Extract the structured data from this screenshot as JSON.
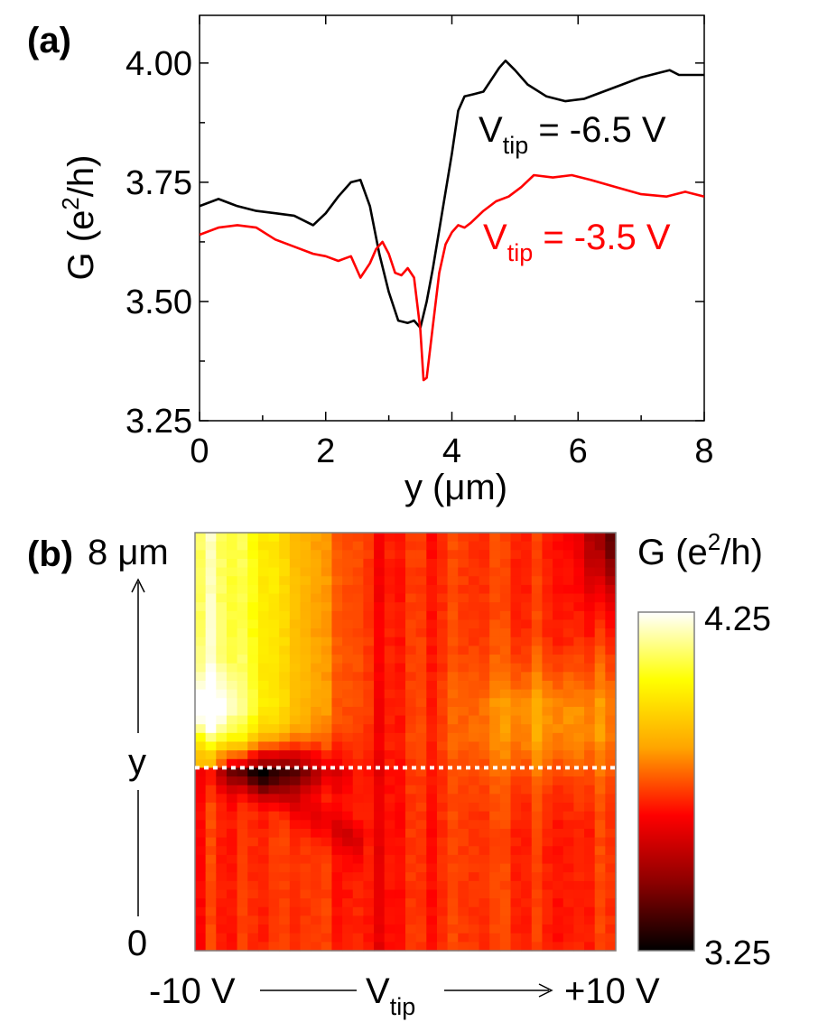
{
  "chart_data": [
    {
      "panel_label": "(a)",
      "type": "line",
      "xlabel": "y (μm)",
      "ylabel": {
        "main": "G (e",
        "sup": "2",
        "tail": "/h)"
      },
      "xlim": [
        0,
        8
      ],
      "ylim": [
        3.25,
        4.1
      ],
      "xticks": [
        "0",
        "2",
        "4",
        "6",
        "8"
      ],
      "yticks": [
        "3.25",
        "3.50",
        "3.75",
        "4.00"
      ],
      "grid": false,
      "series": [
        {
          "name": {
            "main": "V",
            "sub": "tip",
            "tail": " = -6.5 V"
          },
          "color": "#000000",
          "x": [
            0,
            0.3,
            0.6,
            0.9,
            1.2,
            1.5,
            1.8,
            2.0,
            2.2,
            2.4,
            2.55,
            2.7,
            2.85,
            3.0,
            3.15,
            3.3,
            3.4,
            3.5,
            3.6,
            3.7,
            3.8,
            3.9,
            4.0,
            4.1,
            4.2,
            4.35,
            4.5,
            4.6,
            4.75,
            4.85,
            5.0,
            5.2,
            5.5,
            5.8,
            6.1,
            6.4,
            6.7,
            7.0,
            7.3,
            7.45,
            7.6,
            7.8,
            8.0
          ],
          "y": [
            3.7,
            3.715,
            3.7,
            3.69,
            3.685,
            3.68,
            3.66,
            3.685,
            3.72,
            3.75,
            3.755,
            3.7,
            3.6,
            3.52,
            3.46,
            3.455,
            3.46,
            3.445,
            3.5,
            3.57,
            3.65,
            3.73,
            3.81,
            3.9,
            3.93,
            3.935,
            3.94,
            3.96,
            3.99,
            4.005,
            3.985,
            3.955,
            3.93,
            3.92,
            3.925,
            3.94,
            3.955,
            3.97,
            3.98,
            3.985,
            3.975,
            3.975,
            3.975
          ]
        },
        {
          "name": {
            "main": "V",
            "sub": "tip",
            "tail": " = -3.5 V"
          },
          "color": "#ff0000",
          "x": [
            0,
            0.3,
            0.6,
            0.9,
            1.2,
            1.5,
            1.8,
            2.0,
            2.2,
            2.4,
            2.55,
            2.7,
            2.8,
            2.9,
            3.0,
            3.1,
            3.2,
            3.3,
            3.4,
            3.5,
            3.55,
            3.6,
            3.7,
            3.8,
            3.9,
            4.0,
            4.1,
            4.2,
            4.3,
            4.5,
            4.7,
            4.9,
            5.1,
            5.3,
            5.6,
            5.9,
            6.2,
            6.6,
            7.0,
            7.4,
            7.7,
            8.0
          ],
          "y": [
            3.64,
            3.655,
            3.66,
            3.655,
            3.63,
            3.615,
            3.6,
            3.595,
            3.585,
            3.595,
            3.55,
            3.58,
            3.61,
            3.625,
            3.6,
            3.56,
            3.555,
            3.57,
            3.55,
            3.44,
            3.335,
            3.34,
            3.45,
            3.56,
            3.62,
            3.645,
            3.66,
            3.655,
            3.665,
            3.69,
            3.71,
            3.72,
            3.74,
            3.765,
            3.76,
            3.765,
            3.755,
            3.74,
            3.725,
            3.72,
            3.73,
            3.72
          ]
        }
      ]
    },
    {
      "panel_label": "(b)",
      "type": "heatmap",
      "x_range": [
        -10,
        10
      ],
      "y_range": [
        0,
        8
      ],
      "x_axis": {
        "start": "-10 V",
        "end": "+10 V",
        "label_main": "V",
        "label_sub": "tip"
      },
      "y_axis": {
        "top": "8 μm",
        "middle": "y",
        "bottom": "0"
      },
      "colorbar": {
        "title": {
          "main": "G (e",
          "sup": "2",
          "tail": "/h)"
        },
        "max": 4.25,
        "min": 3.25,
        "max_label": "4.25",
        "min_label": "3.25",
        "colormap": [
          "#000000",
          "#8b0000",
          "#ff0000",
          "#ffa500",
          "#ffff00",
          "#ffffff"
        ]
      },
      "cut_line": {
        "y": 3.5,
        "color": "#ffffff",
        "style": "dotted"
      }
    }
  ]
}
